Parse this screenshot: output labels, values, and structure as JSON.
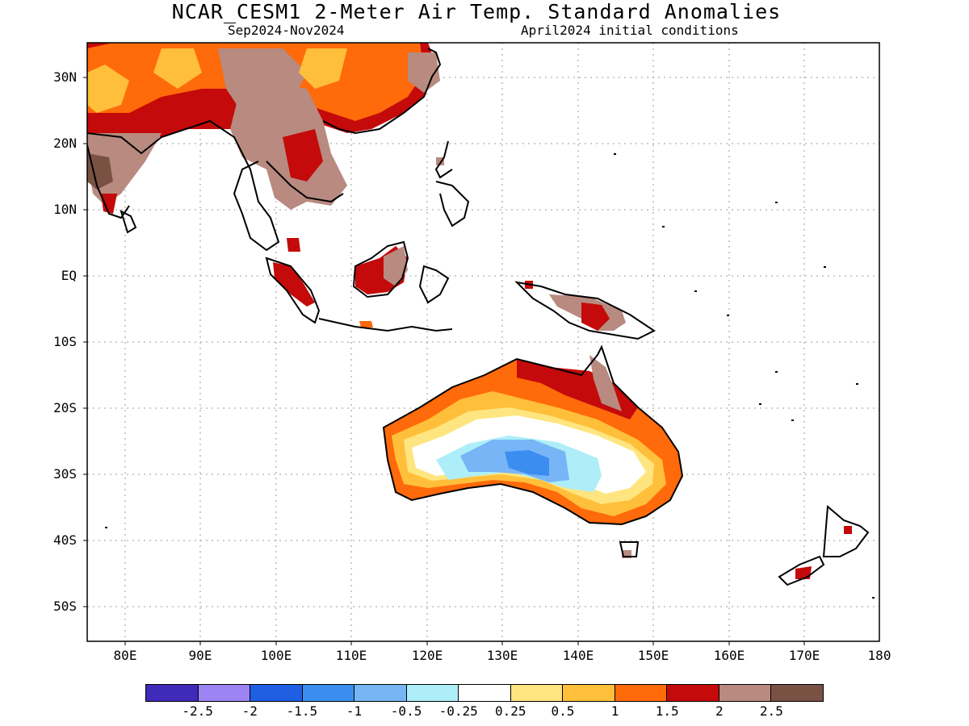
{
  "title": "NCAR_CESM1 2-Meter Air Temp. Standard Anomalies",
  "subtitle_left": "Sep2024-Nov2024",
  "subtitle_right": "April2024 initial conditions",
  "lat_labels": [
    "30N",
    "20N",
    "10N",
    "EQ",
    "10S",
    "20S",
    "30S",
    "40S",
    "50S"
  ],
  "lon_labels": [
    "80E",
    "90E",
    "100E",
    "110E",
    "120E",
    "130E",
    "140E",
    "150E",
    "160E",
    "170E",
    "180"
  ],
  "colorbar": {
    "colors": [
      "#3f2aba",
      "#9c84f4",
      "#1f5fe4",
      "#3b8ef0",
      "#77b5f6",
      "#aeeef8",
      "#ffffff",
      "#ffe57f",
      "#ffbf3a",
      "#ff6a0a",
      "#c40a0a",
      "#b88a80",
      "#7a5244"
    ],
    "labels": [
      "-2.5",
      "-2",
      "-1.5",
      "-1",
      "-0.5",
      "-0.25",
      "0.25",
      "0.5",
      "1",
      "1.5",
      "2",
      "2.5"
    ]
  }
}
